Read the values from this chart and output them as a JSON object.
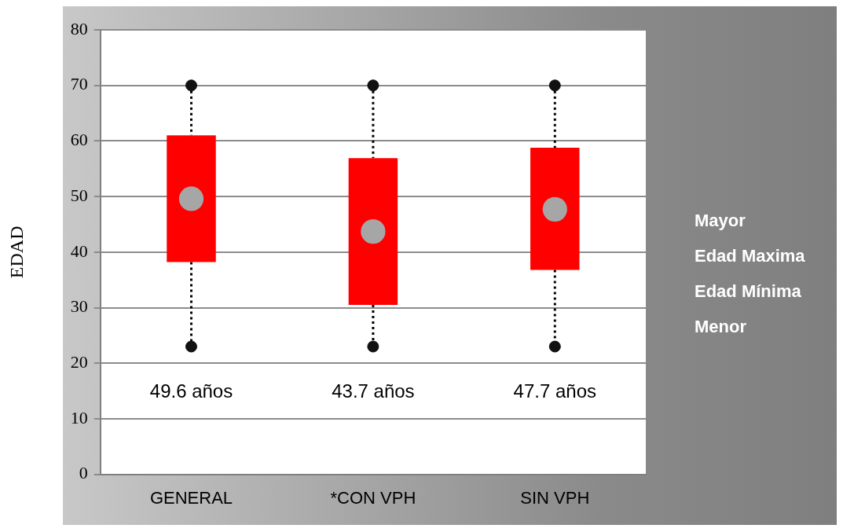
{
  "chart_data": {
    "type": "box",
    "ylabel": "EDAD",
    "categories": [
      "GENERAL",
      "*CON VPH",
      "SIN VPH"
    ],
    "boxes": [
      {
        "low": 23,
        "q1": 38.2,
        "q3": 61,
        "high": 70,
        "mean": 49.6
      },
      {
        "low": 23,
        "q1": 30.5,
        "q3": 56.9,
        "high": 70,
        "mean": 43.7
      },
      {
        "low": 23,
        "q1": 36.8,
        "q3": 58.8,
        "high": 70,
        "mean": 47.7
      }
    ],
    "series": [
      {
        "type": "scatter",
        "color": "#111111",
        "x": [
          "GENERAL",
          "*CON VPH",
          "SIN VPH"
        ],
        "values": [
          70,
          70,
          70
        ]
      },
      {
        "type": "scatter",
        "color": "#111111",
        "x": [
          "GENERAL",
          "*CON VPH",
          "SIN VPH"
        ],
        "values": [
          23,
          23,
          23
        ]
      }
    ],
    "color": "#ff0000",
    "ylim": [
      0,
      80
    ],
    "yticks": [
      0,
      10,
      20,
      30,
      40,
      50,
      60,
      70,
      80
    ],
    "grid": "y",
    "marker": "circle",
    "line_style": "dotted",
    "annotations": [
      "49.6 años",
      "43.7 años",
      "47.7 años",
      "Mayor",
      "Edad Maxima",
      "Edad Mínima",
      "Menor"
    ]
  }
}
